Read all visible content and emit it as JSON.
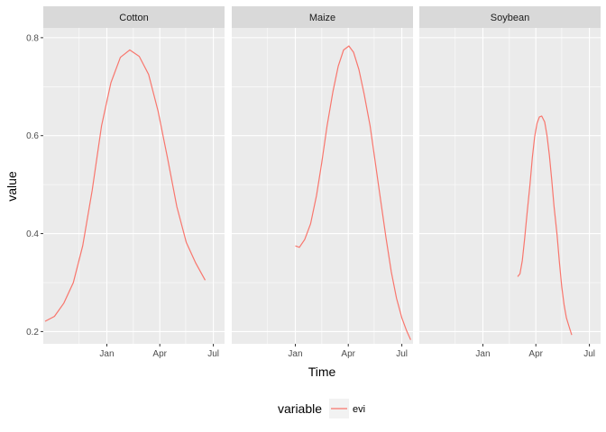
{
  "chart_data": {
    "type": "line",
    "facet_variable": "crop",
    "xlabel": "Time",
    "ylabel": "value",
    "ylim": [
      0.175,
      0.82
    ],
    "y_ticks": [
      0.2,
      0.4,
      0.6,
      0.8
    ],
    "y_tick_labels": [
      "0.2",
      "0.4",
      "0.6",
      "0.8"
    ],
    "xlim": [
      "2016-09-15",
      "2017-07-20"
    ],
    "x_ticks": [
      "2017-01-01",
      "2017-04-01",
      "2017-07-01"
    ],
    "x_tick_labels": [
      "Jan",
      "Apr",
      "Jul"
    ],
    "x_minor_ticks": [
      "2016-11-15",
      "2017-02-15",
      "2017-05-15"
    ],
    "grid": true,
    "legend": {
      "position": "bottom",
      "title": "variable",
      "entries": [
        {
          "label": "evi",
          "color": "#F8766D"
        }
      ]
    },
    "series_color": "#F8766D",
    "panels": [
      {
        "facet": "Cotton",
        "series": [
          {
            "name": "evi",
            "points": [
              [
                "2016-09-18",
                0.221
              ],
              [
                "2016-10-04",
                0.231
              ],
              [
                "2016-10-20",
                0.258
              ],
              [
                "2016-11-05",
                0.3
              ],
              [
                "2016-11-21",
                0.375
              ],
              [
                "2016-12-07",
                0.488
              ],
              [
                "2016-12-23",
                0.62
              ],
              [
                "2017-01-08",
                0.708
              ],
              [
                "2017-01-24",
                0.76
              ],
              [
                "2017-02-09",
                0.775
              ],
              [
                "2017-02-25",
                0.762
              ],
              [
                "2017-03-13",
                0.725
              ],
              [
                "2017-03-29",
                0.65
              ],
              [
                "2017-04-14",
                0.555
              ],
              [
                "2017-04-30",
                0.455
              ],
              [
                "2017-05-16",
                0.382
              ],
              [
                "2017-06-01",
                0.34
              ],
              [
                "2017-06-17",
                0.305
              ]
            ]
          }
        ]
      },
      {
        "facet": "Maize",
        "series": [
          {
            "name": "evi",
            "points": [
              [
                "2017-01-01",
                0.375
              ],
              [
                "2017-01-08",
                0.372
              ],
              [
                "2017-01-17",
                0.388
              ],
              [
                "2017-01-27",
                0.42
              ],
              [
                "2017-02-06",
                0.478
              ],
              [
                "2017-02-15",
                0.545
              ],
              [
                "2017-02-24",
                0.62
              ],
              [
                "2017-03-06",
                0.69
              ],
              [
                "2017-03-15",
                0.742
              ],
              [
                "2017-03-24",
                0.775
              ],
              [
                "2017-04-02",
                0.783
              ],
              [
                "2017-04-10",
                0.77
              ],
              [
                "2017-04-19",
                0.735
              ],
              [
                "2017-04-28",
                0.685
              ],
              [
                "2017-05-08",
                0.62
              ],
              [
                "2017-05-17",
                0.545
              ],
              [
                "2017-05-26",
                0.468
              ],
              [
                "2017-06-04",
                0.392
              ],
              [
                "2017-06-13",
                0.322
              ],
              [
                "2017-06-22",
                0.268
              ],
              [
                "2017-07-01",
                0.228
              ],
              [
                "2017-07-09",
                0.202
              ],
              [
                "2017-07-16",
                0.183
              ]
            ]
          }
        ]
      },
      {
        "facet": "Soybean",
        "series": [
          {
            "name": "evi",
            "points": [
              [
                "2017-03-01",
                0.312
              ],
              [
                "2017-03-05",
                0.318
              ],
              [
                "2017-03-09",
                0.345
              ],
              [
                "2017-03-13",
                0.39
              ],
              [
                "2017-03-17",
                0.44
              ],
              [
                "2017-03-22",
                0.5
              ],
              [
                "2017-03-26",
                0.555
              ],
              [
                "2017-03-30",
                0.598
              ],
              [
                "2017-04-03",
                0.625
              ],
              [
                "2017-04-07",
                0.638
              ],
              [
                "2017-04-11",
                0.64
              ],
              [
                "2017-04-16",
                0.628
              ],
              [
                "2017-04-20",
                0.6
              ],
              [
                "2017-04-24",
                0.56
              ],
              [
                "2017-04-28",
                0.51
              ],
              [
                "2017-05-02",
                0.455
              ],
              [
                "2017-05-07",
                0.398
              ],
              [
                "2017-05-11",
                0.342
              ],
              [
                "2017-05-15",
                0.292
              ],
              [
                "2017-05-19",
                0.255
              ],
              [
                "2017-05-23",
                0.228
              ],
              [
                "2017-05-28",
                0.208
              ],
              [
                "2017-06-01",
                0.193
              ]
            ]
          }
        ]
      }
    ]
  }
}
